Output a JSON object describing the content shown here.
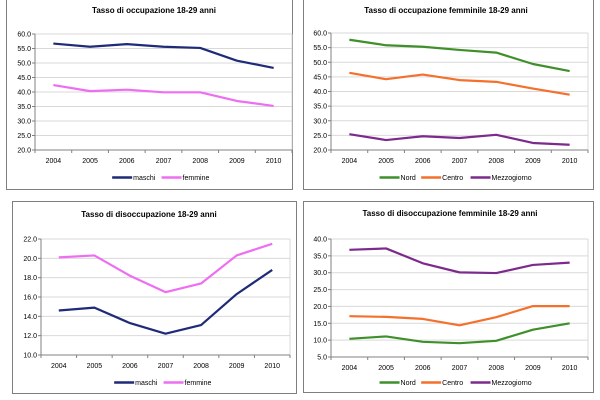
{
  "chart_data": [
    {
      "type": "line",
      "title": "Tasso di occupazione 18-29 anni",
      "xlabel": "",
      "ylabel": "",
      "categories": [
        "2004",
        "2005",
        "2006",
        "2007",
        "2008",
        "2009",
        "2010"
      ],
      "ylim": [
        20.0,
        60.0
      ],
      "yticks": [
        "20.0",
        "25.0",
        "30.0",
        "35.0",
        "40.0",
        "45.0",
        "50.0",
        "55.0",
        "60.0"
      ],
      "ystep": 5,
      "grid": true,
      "legend": "bottom",
      "series": [
        {
          "name": "maschi",
          "color": "#1f2a78",
          "values": [
            56.7,
            55.6,
            56.5,
            55.6,
            55.2,
            50.8,
            48.3
          ]
        },
        {
          "name": "femmine",
          "color": "#ee6ef2",
          "values": [
            42.4,
            40.3,
            40.8,
            39.9,
            39.9,
            36.9,
            35.2
          ]
        }
      ]
    },
    {
      "type": "line",
      "title": "Tasso di occupazione femminile 18-29 anni",
      "xlabel": "",
      "ylabel": "",
      "categories": [
        "2004",
        "2005",
        "2006",
        "2007",
        "2008",
        "2009",
        "2010"
      ],
      "ylim": [
        20.0,
        60.0
      ],
      "yticks": [
        "20.0",
        "25.0",
        "30.0",
        "35.0",
        "40.0",
        "45.0",
        "50.0",
        "55.0",
        "60.0"
      ],
      "ystep": 5,
      "grid": true,
      "legend": "bottom",
      "series": [
        {
          "name": "Nord",
          "color": "#3f8f2a",
          "values": [
            57.7,
            55.8,
            55.3,
            54.2,
            53.3,
            49.4,
            47.0
          ]
        },
        {
          "name": "Centro",
          "color": "#f4702c",
          "values": [
            46.4,
            44.2,
            45.8,
            43.9,
            43.3,
            41.0,
            38.9
          ]
        },
        {
          "name": "Mezzogiorno",
          "color": "#7c2a8c",
          "values": [
            25.4,
            23.4,
            24.7,
            24.1,
            25.2,
            22.4,
            21.8
          ]
        }
      ]
    },
    {
      "type": "line",
      "title": "Tasso di disoccupazione 18-29 anni",
      "xlabel": "",
      "ylabel": "",
      "categories": [
        "2004",
        "2005",
        "2006",
        "2007",
        "2008",
        "2009",
        "2010"
      ],
      "ylim": [
        10.0,
        22.0
      ],
      "yticks": [
        "10.0",
        "12.0",
        "14.0",
        "16.0",
        "18.0",
        "20.0",
        "22.0"
      ],
      "ystep": 2,
      "grid": true,
      "legend": "bottom",
      "series": [
        {
          "name": "maschi",
          "color": "#1f2a78",
          "values": [
            14.6,
            14.9,
            13.3,
            12.2,
            13.1,
            16.3,
            18.8
          ]
        },
        {
          "name": "femmine",
          "color": "#ee6ef2",
          "values": [
            20.1,
            20.3,
            18.2,
            16.5,
            17.4,
            20.3,
            21.5
          ]
        }
      ]
    },
    {
      "type": "line",
      "title": "Tasso di disoccupazione femminile 18-29 anni",
      "xlabel": "",
      "ylabel": "",
      "categories": [
        "2004",
        "2005",
        "2006",
        "2007",
        "2008",
        "2009",
        "2010"
      ],
      "ylim": [
        5.0,
        40.0
      ],
      "yticks": [
        "5.0",
        "10.0",
        "15.0",
        "20.0",
        "25.0",
        "30.0",
        "35.0",
        "40.0"
      ],
      "ystep": 5,
      "grid": true,
      "legend": "bottom",
      "series": [
        {
          "name": "Nord",
          "color": "#3f8f2a",
          "values": [
            10.4,
            11.1,
            9.5,
            9.1,
            9.8,
            13.1,
            15.0
          ]
        },
        {
          "name": "Centro",
          "color": "#f4702c",
          "values": [
            17.1,
            16.9,
            16.3,
            14.4,
            16.8,
            20.1,
            20.1
          ]
        },
        {
          "name": "Mezzogiorno",
          "color": "#7c2a8c",
          "values": [
            36.8,
            37.2,
            32.8,
            30.1,
            29.9,
            32.3,
            33.0
          ]
        }
      ]
    }
  ]
}
